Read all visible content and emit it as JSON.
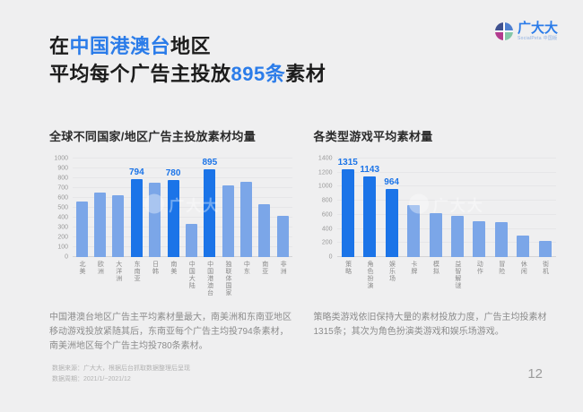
{
  "page": {
    "number": "12",
    "bg": "#efeff0"
  },
  "colors": {
    "accent": "#1b74e8",
    "bar_light": "#7ba6e8",
    "title_blue": "#2b7ce9",
    "ink": "#1c1c1c"
  },
  "logo": {
    "name": "广大大",
    "tagline": "SocialPeta 中国版",
    "icon": "pie-quadrant-logo"
  },
  "header": {
    "line1": [
      {
        "t": "在",
        "c": "dark"
      },
      {
        "t": "中国港澳台",
        "c": "blue"
      },
      {
        "t": "地区",
        "c": "dark"
      }
    ],
    "line2": [
      {
        "t": "平均每个广告主投放",
        "c": "dark"
      },
      {
        "t": "895条",
        "c": "blue"
      },
      {
        "t": "素材",
        "c": "dark"
      }
    ]
  },
  "left": {
    "section_title": "全球不同国家/地区广告主投放素材均量",
    "paragraph": "中国港澳台地区广告主平均素材量最大，南美洲和东南亚地区移动游戏投放紧随其后，东南亚每个广告主均投794条素材，南美洲地区每个广告主均投780条素材。"
  },
  "right": {
    "section_title": "各类型游戏平均素材量",
    "paragraph": "策略类游戏依旧保持大量的素材投放力度，广告主均投素材1315条；其次为角色扮演类游戏和娱乐场游戏。"
  },
  "watermark": "广大大",
  "footer": {
    "line1": "数据来源：广大大，根据后台抓取数据整理后呈现",
    "line2": "数据周期：2021/1/~2021/12"
  },
  "chart_data": [
    {
      "type": "bar",
      "title": "全球不同国家/地区广告主投放素材均量",
      "xlabel": "",
      "ylabel": "",
      "categories": [
        "北美",
        "欧洲",
        "大洋洲",
        "东南亚",
        "日韩",
        "南美",
        "中国大陆",
        "中国港澳台",
        "独联体国家",
        "中东",
        "南亚",
        "非洲"
      ],
      "values": [
        560,
        655,
        625,
        794,
        755,
        780,
        335,
        895,
        730,
        765,
        535,
        415
      ],
      "highlighted_indices": [
        3,
        5,
        7
      ],
      "data_labels": {
        "3": "794",
        "5": "780",
        "7": "895"
      },
      "ylim": [
        0,
        1000
      ],
      "ytick_step": 100,
      "grid": true,
      "legend": false
    },
    {
      "type": "bar",
      "title": "各类型游戏平均素材量",
      "xlabel": "",
      "ylabel": "",
      "categories": [
        "策略",
        "角色扮演",
        "娱乐场",
        "卡牌",
        "模拟",
        "益智解谜",
        "动作",
        "冒险",
        "休闲",
        "街机"
      ],
      "values": [
        1315,
        1143,
        964,
        740,
        620,
        585,
        505,
        500,
        300,
        225
      ],
      "highlighted_indices": [
        0,
        1,
        2
      ],
      "data_labels": {
        "0": "1315",
        "1": "1143",
        "2": "964"
      },
      "ylim": [
        0,
        1400
      ],
      "ytick_step": 200,
      "grid": true,
      "legend": false
    }
  ]
}
